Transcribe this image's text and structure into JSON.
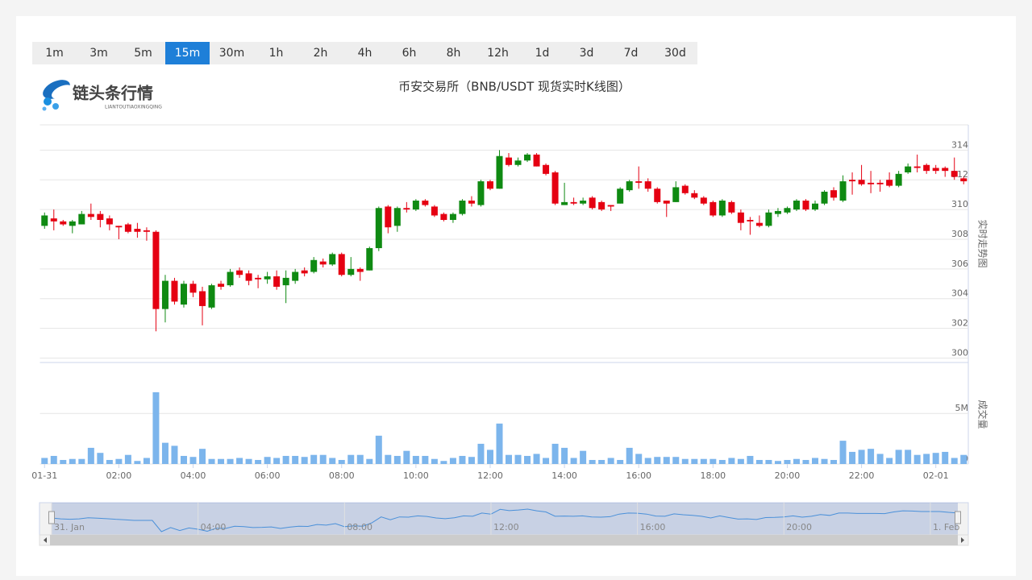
{
  "toolbar": {
    "buttons": [
      "1m",
      "3m",
      "5m",
      "15m",
      "30m",
      "1h",
      "2h",
      "4h",
      "6h",
      "8h",
      "12h",
      "1d",
      "3d",
      "7d",
      "30d"
    ],
    "active": 3
  },
  "logo": {
    "name": "链头条行情",
    "pinyin": "LIANTOUTIAOXINGQING"
  },
  "chart_data": {
    "type": "candlestick",
    "title": "币安交易所（BNB/USDT 现货实时K线图）",
    "categories": [
      "01-31",
      null,
      null,
      null,
      null,
      null,
      null,
      null,
      "02:00",
      null,
      null,
      null,
      null,
      null,
      null,
      null,
      "04:00",
      null,
      null,
      null,
      null,
      null,
      null,
      null,
      "06:00",
      null,
      null,
      null,
      null,
      null,
      null,
      null,
      "08:00",
      null,
      null,
      null,
      null,
      null,
      null,
      null,
      "10:00",
      null,
      null,
      null,
      null,
      null,
      null,
      null,
      "12:00",
      null,
      null,
      null,
      null,
      null,
      null,
      null,
      "14:00",
      null,
      null,
      null,
      null,
      null,
      null,
      null,
      "16:00",
      null,
      null,
      null,
      null,
      null,
      null,
      null,
      "18:00",
      null,
      null,
      null,
      null,
      null,
      null,
      null,
      "20:00",
      null,
      null,
      null,
      null,
      null,
      null,
      null,
      "22:00",
      null,
      null,
      null,
      null,
      null,
      null,
      null,
      "02-01",
      null,
      null,
      null
    ],
    "open": [
      308.9,
      309.4,
      309.2,
      308.9,
      309.0,
      309.7,
      309.7,
      309.4,
      308.9,
      309.0,
      308.7,
      308.6,
      308.5,
      303.3,
      305.2,
      303.6,
      305.0,
      304.5,
      303.4,
      305.0,
      304.9,
      305.9,
      305.7,
      305.4,
      305.3,
      305.5,
      304.9,
      305.2,
      305.9,
      305.8,
      306.5,
      306.3,
      307.0,
      305.6,
      306.0,
      305.9,
      307.4,
      310.2,
      308.9,
      310.1,
      310.0,
      310.6,
      310.2,
      309.7,
      309.3,
      309.7,
      310.6,
      310.3,
      311.9,
      311.4,
      313.5,
      313.0,
      313.3,
      313.7,
      313.0,
      312.5,
      310.3,
      310.5,
      310.4,
      310.8,
      310.5,
      310.3,
      310.4,
      311.3,
      311.9,
      311.9,
      311.4,
      310.6,
      310.5,
      311.6,
      311.1,
      310.8,
      310.5,
      309.6,
      310.5,
      309.8,
      309.3,
      309.1,
      308.9,
      309.7,
      309.8,
      310.0,
      310.6,
      310.0,
      310.4,
      311.3,
      310.6,
      312.0,
      312.0,
      311.8,
      311.8,
      312.0,
      311.6,
      312.5,
      312.9,
      313.0,
      312.8,
      312.8,
      312.6,
      312.1
    ],
    "high": [
      309.8,
      310.0,
      309.3,
      309.3,
      309.9,
      310.4,
      309.9,
      309.6,
      308.9,
      309.1,
      309.1,
      308.8,
      308.6,
      305.6,
      305.4,
      305.2,
      305.2,
      304.8,
      305.0,
      305.2,
      306.0,
      306.1,
      305.9,
      305.6,
      305.8,
      305.9,
      305.9,
      306.0,
      306.1,
      306.8,
      306.7,
      307.1,
      307.1,
      306.8,
      306.1,
      307.5,
      310.2,
      310.3,
      310.2,
      310.5,
      310.7,
      310.7,
      310.3,
      309.8,
      309.8,
      310.7,
      310.9,
      312.0,
      312.0,
      314.0,
      313.8,
      313.5,
      313.8,
      313.8,
      313.1,
      312.6,
      311.8,
      310.8,
      310.8,
      310.9,
      310.6,
      310.3,
      311.5,
      312.0,
      312.9,
      312.1,
      311.5,
      310.6,
      311.9,
      311.7,
      311.3,
      310.9,
      310.6,
      310.7,
      310.6,
      310.0,
      309.5,
      309.6,
      310.0,
      310.1,
      310.2,
      310.7,
      310.7,
      310.6,
      311.3,
      311.5,
      312.3,
      312.5,
      313.0,
      312.6,
      312.0,
      312.5,
      312.6,
      313.1,
      313.7,
      313.1,
      313.0,
      312.9,
      313.5,
      312.2
    ],
    "low": [
      308.7,
      308.6,
      308.9,
      308.4,
      309.0,
      309.3,
      308.8,
      308.6,
      308.0,
      308.4,
      308.1,
      307.9,
      301.8,
      302.4,
      303.6,
      303.4,
      304.1,
      302.2,
      303.3,
      304.6,
      304.8,
      305.4,
      304.9,
      304.7,
      305.0,
      304.6,
      303.7,
      305.0,
      305.5,
      305.7,
      306.1,
      306.2,
      305.5,
      305.5,
      305.2,
      305.9,
      307.2,
      308.4,
      308.5,
      309.8,
      309.9,
      310.2,
      309.5,
      309.2,
      309.1,
      309.6,
      310.2,
      310.2,
      311.3,
      311.4,
      312.9,
      312.9,
      313.2,
      312.9,
      312.3,
      310.3,
      310.3,
      310.3,
      310.3,
      310.0,
      309.9,
      309.9,
      310.4,
      311.2,
      311.4,
      311.2,
      310.4,
      309.5,
      310.5,
      311.0,
      310.7,
      310.3,
      309.5,
      309.5,
      309.7,
      308.6,
      308.3,
      308.8,
      308.8,
      309.5,
      309.7,
      309.9,
      309.9,
      309.9,
      310.3,
      310.6,
      310.5,
      311.0,
      311.6,
      311.1,
      311.2,
      311.5,
      311.5,
      312.4,
      312.5,
      312.4,
      312.4,
      312.2,
      312.0,
      311.7
    ],
    "close": [
      309.6,
      309.2,
      309.0,
      309.2,
      309.7,
      309.5,
      309.3,
      309.0,
      308.8,
      308.5,
      308.5,
      308.5,
      303.3,
      305.2,
      303.8,
      305.0,
      304.4,
      303.5,
      304.9,
      304.8,
      305.8,
      305.6,
      305.2,
      305.3,
      305.5,
      304.8,
      305.4,
      305.8,
      305.7,
      306.6,
      306.3,
      307.0,
      305.6,
      306.0,
      305.8,
      307.4,
      310.1,
      308.8,
      310.1,
      310.0,
      310.6,
      310.3,
      309.6,
      309.3,
      309.7,
      310.6,
      310.4,
      311.9,
      311.4,
      313.6,
      313.0,
      313.3,
      313.7,
      312.9,
      312.4,
      310.4,
      310.5,
      310.4,
      310.6,
      310.1,
      310.0,
      310.2,
      311.4,
      311.9,
      311.8,
      311.4,
      310.5,
      310.4,
      311.5,
      311.1,
      310.8,
      310.4,
      309.6,
      310.6,
      309.8,
      309.1,
      309.2,
      308.9,
      309.8,
      309.9,
      310.1,
      310.6,
      310.0,
      310.4,
      311.2,
      310.8,
      311.9,
      311.9,
      311.7,
      311.7,
      311.7,
      311.6,
      312.4,
      312.9,
      312.8,
      312.6,
      312.6,
      312.6,
      312.2,
      311.9
    ],
    "up_color": "#0f8a12",
    "down_color": "#e50012",
    "ylim": [
      299.7,
      315.7
    ],
    "yticks": [
      300,
      302,
      304,
      306,
      308,
      310,
      312,
      314
    ],
    "y_title": "实时走势图",
    "grid": true,
    "volume": {
      "values": [
        0.6,
        0.8,
        0.4,
        0.5,
        0.5,
        1.6,
        1.1,
        0.4,
        0.5,
        0.9,
        0.3,
        0.6,
        7.1,
        2.1,
        1.8,
        0.8,
        0.7,
        1.5,
        0.5,
        0.5,
        0.5,
        0.6,
        0.5,
        0.4,
        0.7,
        0.6,
        0.8,
        0.8,
        0.7,
        0.9,
        0.9,
        0.6,
        0.4,
        0.9,
        0.9,
        0.5,
        2.8,
        0.9,
        0.8,
        1.3,
        0.8,
        0.8,
        0.5,
        0.3,
        0.6,
        0.8,
        0.7,
        2.0,
        1.4,
        4.0,
        0.9,
        0.9,
        0.8,
        1.0,
        0.6,
        2.0,
        1.6,
        0.6,
        1.3,
        0.4,
        0.4,
        0.6,
        0.4,
        1.6,
        1.0,
        0.6,
        0.7,
        0.7,
        0.7,
        0.5,
        0.5,
        0.5,
        0.5,
        0.4,
        0.6,
        0.5,
        0.8,
        0.4,
        0.4,
        0.3,
        0.4,
        0.5,
        0.4,
        0.6,
        0.5,
        0.4,
        2.3,
        1.2,
        1.4,
        1.5,
        1.0,
        0.6,
        1.4,
        1.4,
        0.9,
        1.0,
        1.1,
        1.2,
        0.6,
        0.9
      ],
      "color": "#7cb5ec",
      "ylim": [
        0,
        9.8
      ],
      "yticks": [
        0,
        {
          "value": 5,
          "label": "5M"
        }
      ],
      "y_title": "成交量"
    },
    "navigator": {
      "labels": [
        "31. Jan",
        "04:00",
        "08:00",
        "12:00",
        "16:00",
        "20:00",
        "1. Feb"
      ],
      "line_color": "#4a90d9"
    }
  }
}
